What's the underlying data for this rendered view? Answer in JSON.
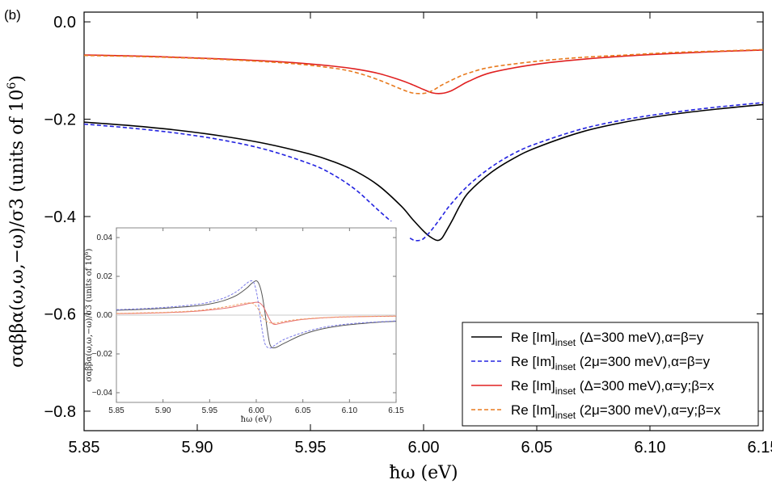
{
  "chart_data": [
    {
      "type": "line",
      "panel_label": "(b)",
      "xlabel": "ħω (eV)",
      "ylabel_main": "σαββα(ω,ω,−ω)/σ3 (units of 10",
      "ylabel_exp": "6",
      "ylabel_close": ")",
      "xlim": [
        5.85,
        6.15
      ],
      "ylim": [
        -0.84,
        0.02
      ],
      "xticks": [
        5.85,
        5.9,
        5.95,
        6.0,
        6.05,
        6.1,
        6.15
      ],
      "xtick_labels": [
        "5.85",
        "5.90",
        "5.95",
        "6.00",
        "6.05",
        "6.10",
        "6.15"
      ],
      "yticks": [
        0.0,
        -0.2,
        -0.4,
        -0.6,
        -0.8
      ],
      "ytick_labels": [
        "0.0",
        "−0.2",
        "−0.4",
        "−0.6",
        "−0.8"
      ],
      "legend_position": "bottom-right",
      "series": [
        {
          "name": "Re [Im]inset (Δ=300 meV),α=β=y",
          "legend_main": "Re [Im]",
          "legend_sub": "inset",
          "legend_rest": " (Δ=300 meV),α=β=y",
          "color": "#000000",
          "dash": "solid",
          "x": [
            5.85,
            5.87,
            5.89,
            5.91,
            5.93,
            5.95,
            5.96,
            5.97,
            5.98,
            5.99,
            5.995,
            6.0,
            6.003,
            6.006,
            6.008,
            6.01,
            6.013,
            6.016,
            6.02,
            6.03,
            6.04,
            6.05,
            6.07,
            6.09,
            6.11,
            6.13,
            6.15
          ],
          "y": [
            -0.206,
            -0.213,
            -0.222,
            -0.234,
            -0.25,
            -0.272,
            -0.287,
            -0.307,
            -0.336,
            -0.378,
            -0.405,
            -0.43,
            -0.442,
            -0.449,
            -0.445,
            -0.43,
            -0.405,
            -0.378,
            -0.35,
            -0.309,
            -0.28,
            -0.258,
            -0.226,
            -0.205,
            -0.19,
            -0.179,
            -0.17
          ]
        },
        {
          "name": "Re [Im]inset (2μ=300 meV),α=β=y",
          "legend_main": "Re [Im]",
          "legend_sub": "inset",
          "legend_rest": " (2μ=300 meV),α=β=y",
          "color": "#2323e0",
          "dash": "dashed",
          "x": [
            5.85,
            5.87,
            5.89,
            5.91,
            5.93,
            5.95,
            5.96,
            5.97,
            5.98,
            5.99,
            5.993,
            5.996,
            5.999,
            6.001,
            6.004,
            6.008,
            6.012,
            6.02,
            6.03,
            6.04,
            6.05,
            6.07,
            6.09,
            6.11,
            6.13,
            6.15
          ],
          "y": [
            -0.21,
            -0.218,
            -0.228,
            -0.242,
            -0.262,
            -0.292,
            -0.314,
            -0.345,
            -0.387,
            -0.428,
            -0.441,
            -0.449,
            -0.448,
            -0.441,
            -0.425,
            -0.4,
            -0.375,
            -0.335,
            -0.298,
            -0.27,
            -0.25,
            -0.22,
            -0.2,
            -0.186,
            -0.175,
            -0.166
          ]
        },
        {
          "name": "Re [Im]inset (Δ=300 meV),α=y;β=x",
          "legend_main": "Re [Im]",
          "legend_sub": "inset",
          "legend_rest": " (Δ=300 meV),α=y;β=x",
          "color": "#e02020",
          "dash": "solid",
          "x": [
            5.85,
            5.88,
            5.91,
            5.94,
            5.96,
            5.97,
            5.98,
            5.99,
            5.995,
            6.0,
            6.004,
            6.008,
            6.012,
            6.016,
            6.02,
            6.03,
            6.05,
            6.07,
            6.09,
            6.11,
            6.13,
            6.15
          ],
          "y": [
            -0.068,
            -0.071,
            -0.076,
            -0.083,
            -0.091,
            -0.097,
            -0.106,
            -0.12,
            -0.129,
            -0.139,
            -0.146,
            -0.147,
            -0.142,
            -0.132,
            -0.122,
            -0.104,
            -0.087,
            -0.077,
            -0.07,
            -0.065,
            -0.061,
            -0.058
          ]
        },
        {
          "name": "Re [Im]inset (2μ=300 meV),α=y;β=x",
          "legend_main": "Re [Im]",
          "legend_sub": "inset",
          "legend_rest": " (2μ=300 meV),α=y;β=x",
          "color": "#e87a1e",
          "dash": "dashed",
          "x": [
            5.85,
            5.88,
            5.91,
            5.94,
            5.96,
            5.97,
            5.98,
            5.99,
            5.995,
            6.0,
            6.004,
            6.008,
            6.015,
            6.02,
            6.03,
            6.05,
            6.07,
            6.09,
            6.11,
            6.13,
            6.15
          ],
          "y": [
            -0.069,
            -0.072,
            -0.077,
            -0.085,
            -0.095,
            -0.104,
            -0.119,
            -0.138,
            -0.146,
            -0.147,
            -0.141,
            -0.13,
            -0.114,
            -0.105,
            -0.093,
            -0.081,
            -0.073,
            -0.068,
            -0.063,
            -0.06,
            -0.057
          ]
        }
      ]
    },
    {
      "type": "line",
      "role": "inset",
      "xlabel": "ħω (eV)",
      "ylabel_main": "σαββα(ω,ω,−ω)/σ3 (units of 10",
      "ylabel_exp": "6",
      "ylabel_close": ")",
      "xlim": [
        5.85,
        6.15
      ],
      "ylim": [
        -0.045,
        0.045
      ],
      "xticks": [
        5.85,
        5.9,
        5.95,
        6.0,
        6.05,
        6.1,
        6.15
      ],
      "xtick_labels": [
        "5.85",
        "5.90",
        "5.95",
        "6.00",
        "6.05",
        "6.10",
        "6.15"
      ],
      "yticks": [
        0.04,
        0.02,
        0.0,
        -0.02,
        -0.04
      ],
      "ytick_labels": [
        "0.04",
        "0.02",
        "0.00",
        "−0.02",
        "−0.04"
      ],
      "zero_line": true,
      "series": [
        {
          "name": "Im (Δ=300 meV),α=β=y",
          "color": "#555555",
          "dash": "solid",
          "x": [
            5.85,
            5.88,
            5.91,
            5.94,
            5.96,
            5.97,
            5.98,
            5.99,
            5.995,
            6.0,
            6.003,
            6.006,
            6.009,
            6.012,
            6.015,
            6.02,
            6.03,
            6.05,
            6.07,
            6.09,
            6.11,
            6.13,
            6.15
          ],
          "y": [
            0.0025,
            0.003,
            0.0038,
            0.005,
            0.0068,
            0.0083,
            0.0105,
            0.014,
            0.0163,
            0.0177,
            0.016,
            0.011,
            0.0025,
            -0.008,
            -0.0155,
            -0.0168,
            -0.0145,
            -0.01,
            -0.0072,
            -0.0055,
            -0.0045,
            -0.0037,
            -0.0032
          ]
        },
        {
          "name": "Im (2μ=300 meV),α=β=y",
          "color": "#7a7ae8",
          "dash": "dashed",
          "x": [
            5.85,
            5.88,
            5.91,
            5.94,
            5.96,
            5.97,
            5.98,
            5.99,
            5.995,
            5.998,
            6.001,
            6.004,
            6.007,
            6.01,
            6.015,
            6.02,
            6.03,
            6.05,
            6.07,
            6.09,
            6.11,
            6.13,
            6.15
          ],
          "y": [
            0.0028,
            0.0034,
            0.0043,
            0.0058,
            0.008,
            0.0098,
            0.0125,
            0.0165,
            0.0177,
            0.016,
            0.01,
            0.0,
            -0.0095,
            -0.0155,
            -0.017,
            -0.0155,
            -0.0125,
            -0.009,
            -0.0065,
            -0.005,
            -0.0041,
            -0.0035,
            -0.003
          ]
        },
        {
          "name": "Im (Δ=300 meV),α=y;β=x",
          "color": "#e66a6a",
          "dash": "solid",
          "x": [
            5.85,
            5.88,
            5.91,
            5.94,
            5.97,
            5.99,
            6.0,
            6.004,
            6.008,
            6.012,
            6.016,
            6.02,
            6.03,
            6.05,
            6.08,
            6.11,
            6.15
          ],
          "y": [
            0.0008,
            0.001,
            0.0014,
            0.0022,
            0.0038,
            0.0058,
            0.0066,
            0.0062,
            0.004,
            0.0,
            -0.0035,
            -0.0048,
            -0.0038,
            -0.0022,
            -0.0012,
            -0.0008,
            -0.0005
          ]
        },
        {
          "name": "Im (2μ=300 meV),α=y;β=x",
          "color": "#f0a46a",
          "dash": "dashed",
          "x": [
            5.85,
            5.88,
            5.91,
            5.94,
            5.97,
            5.985,
            5.995,
            6.0,
            6.004,
            6.008,
            6.012,
            6.02,
            6.03,
            6.05,
            6.08,
            6.11,
            6.15
          ],
          "y": [
            0.0009,
            0.0012,
            0.0016,
            0.0025,
            0.0045,
            0.006,
            0.0062,
            0.0045,
            0.0015,
            -0.0018,
            -0.0035,
            -0.0042,
            -0.0032,
            -0.002,
            -0.0011,
            -0.0007,
            -0.0005
          ]
        }
      ]
    }
  ]
}
